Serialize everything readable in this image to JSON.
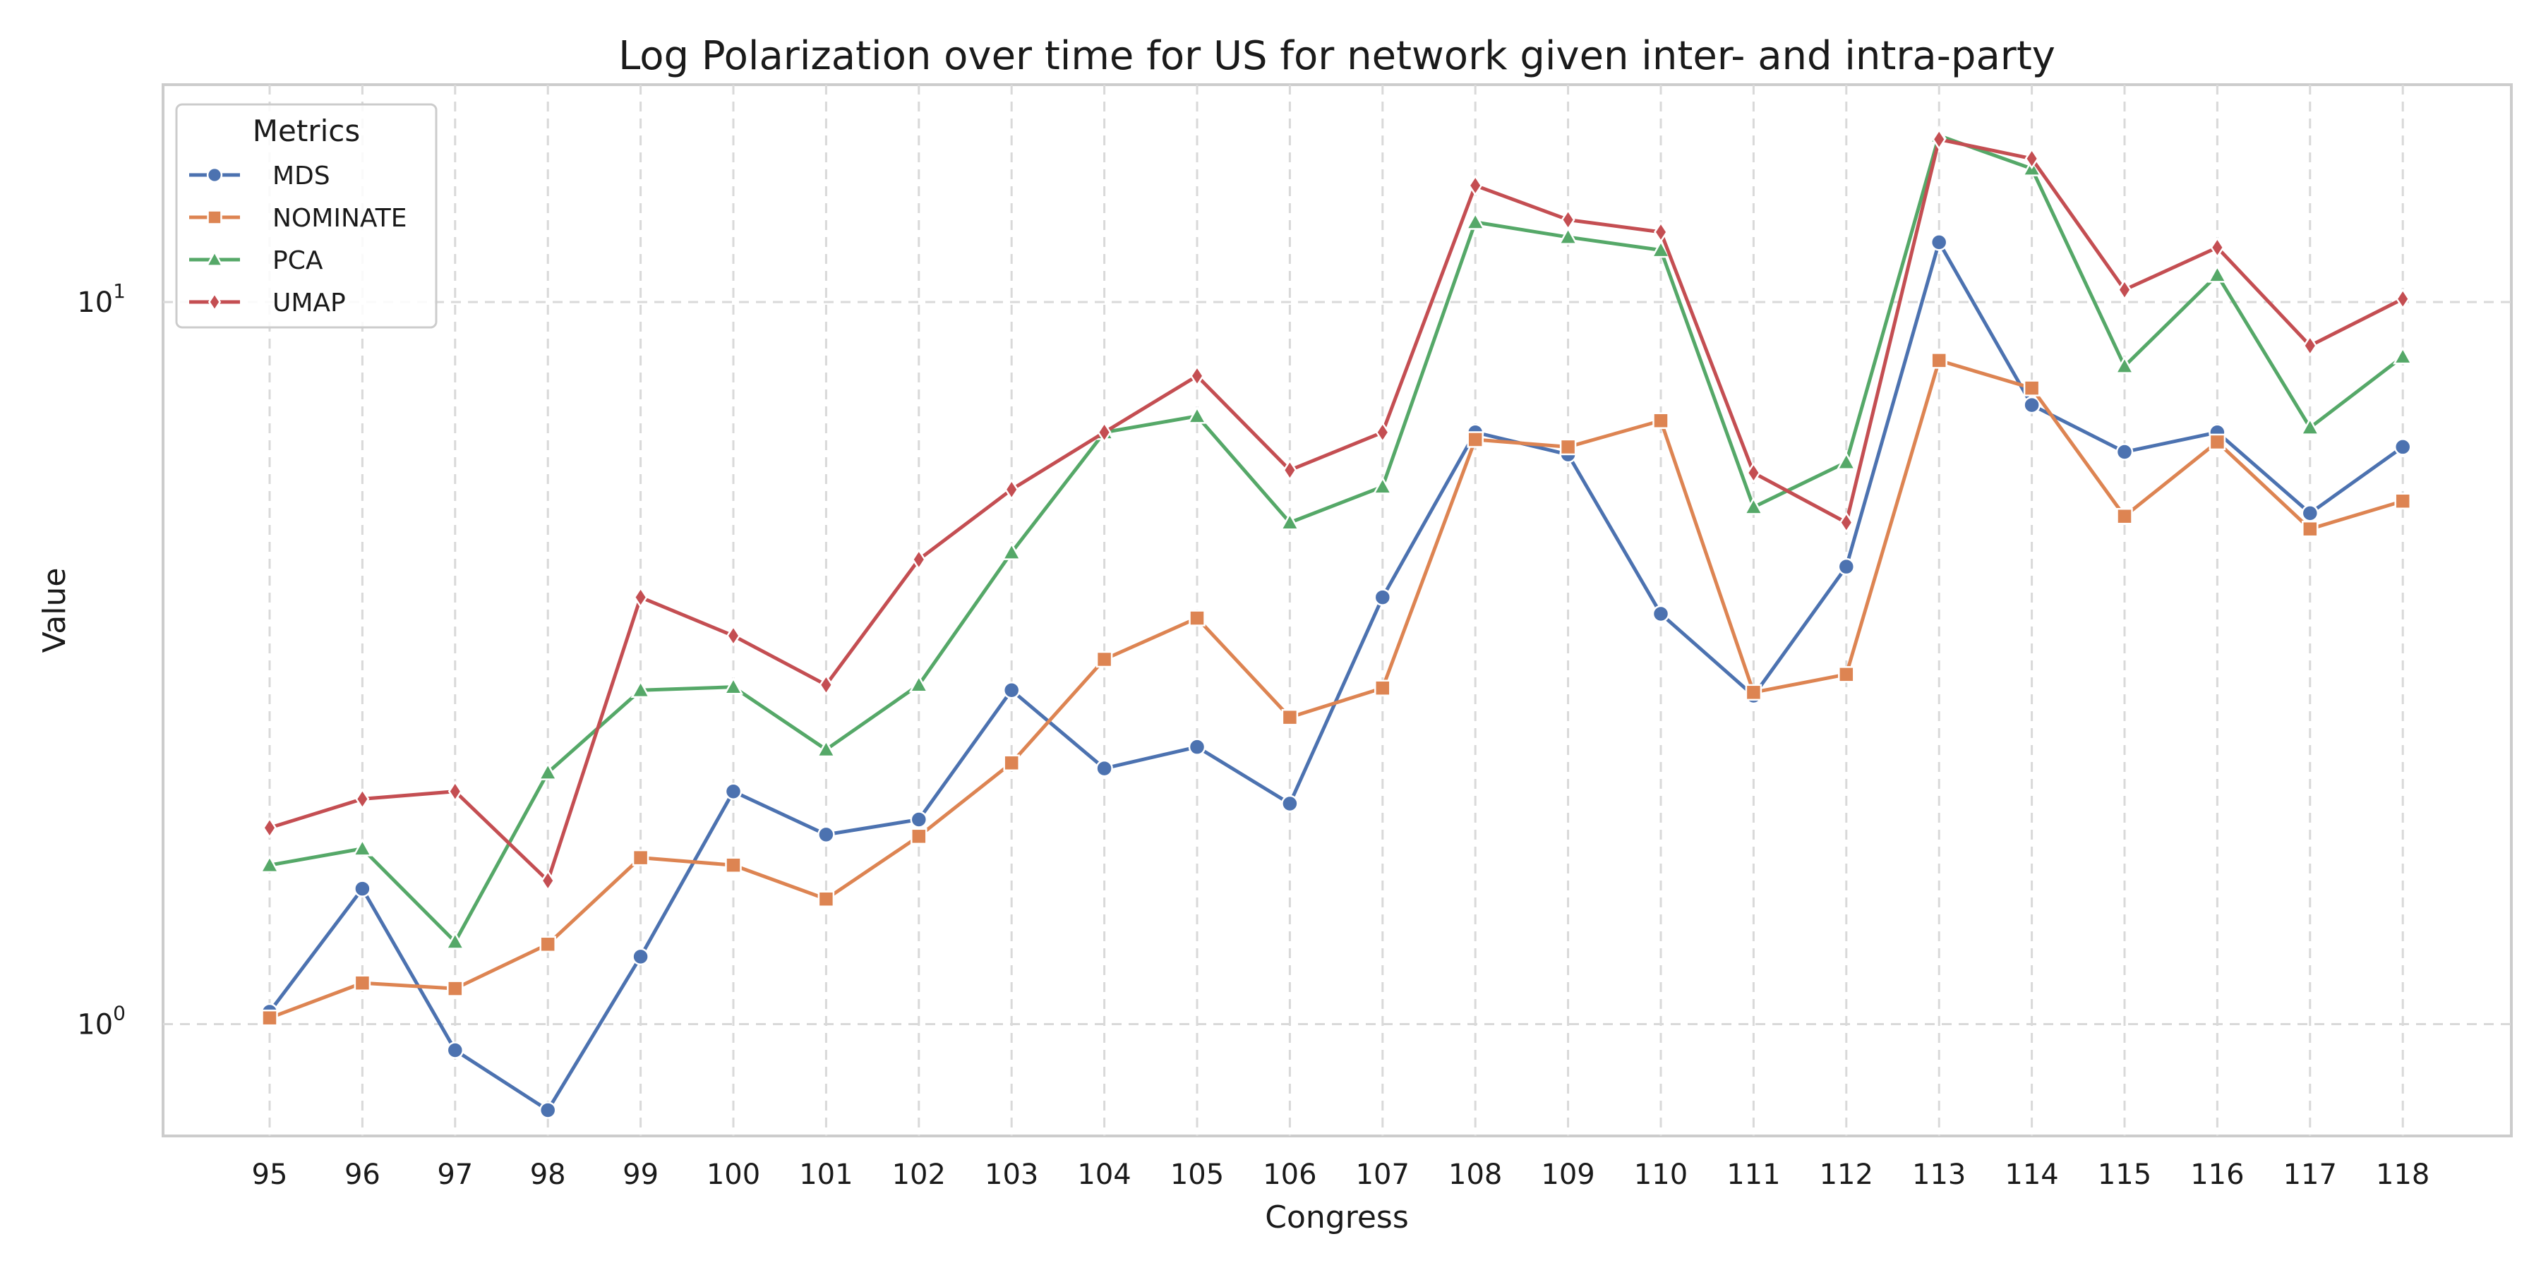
{
  "chart_data": {
    "type": "line",
    "title": "Log Polarization over time for US for network given inter- and intra-party",
    "xlabel": "Congress",
    "ylabel": "Value",
    "yscale": "log",
    "ylim": [
      0.7,
      20
    ],
    "yticks": [
      1,
      10
    ],
    "ytick_labels": [
      {
        "base": "10",
        "exp": "0"
      },
      {
        "base": "10",
        "exp": "1"
      }
    ],
    "grid": true,
    "legend_title": "Metrics",
    "legend_position": "top-left",
    "categories": [
      "95",
      "96",
      "97",
      "98",
      "99",
      "100",
      "101",
      "102",
      "103",
      "104",
      "105",
      "106",
      "107",
      "108",
      "109",
      "110",
      "111",
      "112",
      "113",
      "114",
      "115",
      "116",
      "117",
      "118"
    ],
    "series": [
      {
        "name": "MDS",
        "color": "#4c72b0",
        "marker": "circle",
        "values": [
          1.04,
          1.54,
          0.92,
          0.76,
          1.24,
          2.1,
          1.83,
          1.92,
          2.9,
          2.26,
          2.42,
          2.02,
          3.9,
          6.6,
          6.15,
          3.7,
          2.85,
          4.3,
          12.1,
          7.2,
          6.2,
          6.6,
          5.1,
          6.3
        ]
      },
      {
        "name": "NOMINATE",
        "color": "#dd8452",
        "marker": "square",
        "values": [
          1.02,
          1.14,
          1.12,
          1.29,
          1.7,
          1.66,
          1.49,
          1.82,
          2.3,
          3.2,
          3.65,
          2.66,
          2.92,
          6.45,
          6.3,
          6.85,
          2.88,
          3.05,
          8.3,
          7.6,
          5.05,
          6.4,
          4.85,
          5.3
        ]
      },
      {
        "name": "PCA",
        "color": "#55a868",
        "marker": "triangle",
        "values": [
          1.66,
          1.75,
          1.3,
          2.23,
          2.9,
          2.93,
          2.4,
          2.95,
          4.5,
          6.6,
          6.95,
          4.95,
          5.55,
          12.9,
          12.3,
          11.8,
          5.2,
          6.0,
          17.0,
          15.3,
          8.15,
          10.9,
          6.7,
          8.4
        ]
      },
      {
        "name": "UMAP",
        "color": "#c44e52",
        "marker": "diamond",
        "values": [
          1.87,
          2.05,
          2.1,
          1.58,
          3.9,
          3.45,
          2.95,
          4.4,
          5.5,
          6.6,
          7.9,
          5.85,
          6.6,
          14.5,
          13.0,
          12.5,
          5.8,
          4.95,
          16.8,
          15.8,
          10.4,
          11.9,
          8.7,
          10.1
        ]
      }
    ]
  }
}
